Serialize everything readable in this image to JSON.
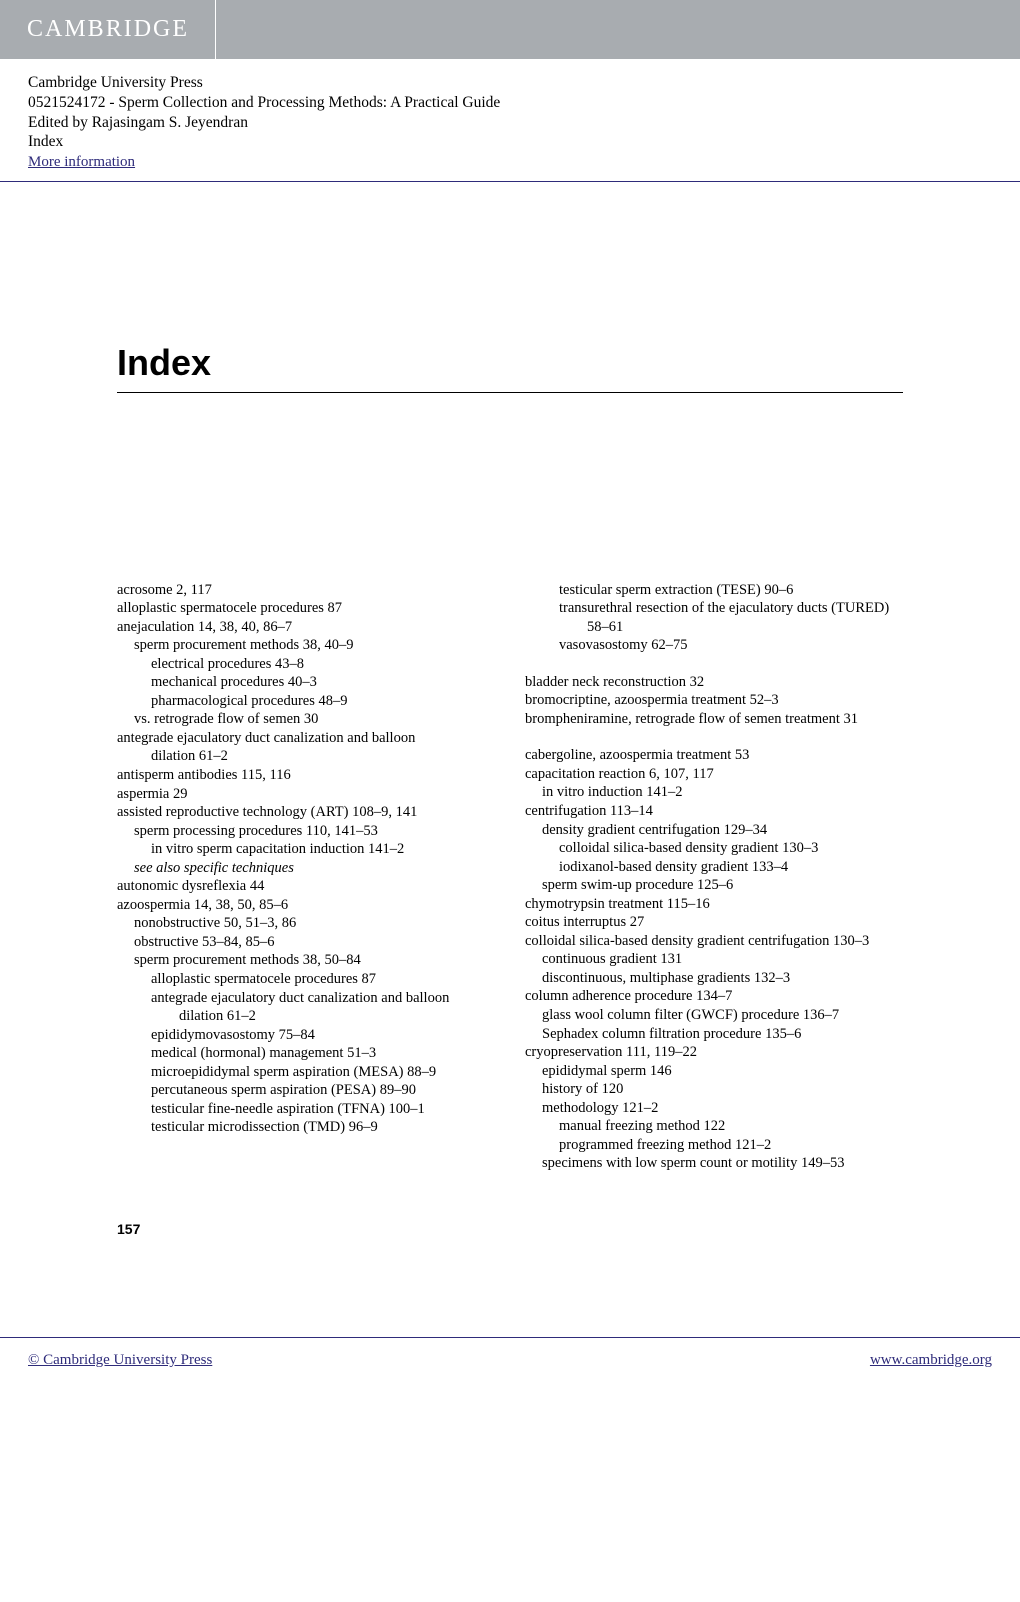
{
  "header": {
    "logo_text": "CAMBRIDGE"
  },
  "meta": {
    "publisher": "Cambridge University Press",
    "isbn_title": "0521524172 - Sperm Collection and Processing Methods: A Practical Guide",
    "editor": "Edited by Rajasingam S. Jeyendran",
    "section": "Index",
    "more_info": "More information"
  },
  "page_title": "Index",
  "page_number": "157",
  "footer": {
    "left": "© Cambridge University Press",
    "right": "www.cambridge.org"
  },
  "colors": {
    "header_bg": "#a8acb0",
    "link": "#2e2b7a",
    "text": "#000000",
    "bg": "#ffffff"
  },
  "left_column": [
    {
      "level": 0,
      "text": "acrosome 2, 117"
    },
    {
      "level": 0,
      "text": "alloplastic spermatocele procedures 87"
    },
    {
      "level": 0,
      "text": "anejaculation 14, 38, 40, 86–7"
    },
    {
      "level": 1,
      "text": "sperm procurement methods 38, 40–9"
    },
    {
      "level": 2,
      "text": "electrical procedures 43–8"
    },
    {
      "level": 2,
      "text": "mechanical procedures 40–3"
    },
    {
      "level": 2,
      "text": "pharmacological procedures 48–9"
    },
    {
      "level": 1,
      "text": "vs. retrograde flow of semen 30"
    },
    {
      "level": 0,
      "text": "antegrade ejaculatory duct canalization and balloon"
    },
    {
      "level": 2,
      "text": "dilation 61–2"
    },
    {
      "level": 0,
      "text": "antisperm antibodies 115, 116"
    },
    {
      "level": 0,
      "text": "aspermia 29"
    },
    {
      "level": 0,
      "text": "assisted reproductive technology (ART) 108–9, 141"
    },
    {
      "level": 1,
      "text": "sperm processing procedures 110, 141–53"
    },
    {
      "level": 2,
      "text": "in vitro sperm capacitation induction 141–2"
    },
    {
      "level": 1,
      "text": "see also specific techniques",
      "italic": true
    },
    {
      "level": 0,
      "text": "autonomic dysreflexia 44"
    },
    {
      "level": 0,
      "text": "azoospermia 14, 38, 50, 85–6"
    },
    {
      "level": 1,
      "text": "nonobstructive 50, 51–3, 86"
    },
    {
      "level": 1,
      "text": "obstructive 53–84, 85–6"
    },
    {
      "level": 1,
      "text": "sperm procurement methods 38, 50–84"
    },
    {
      "level": 2,
      "text": "alloplastic spermatocele procedures 87"
    },
    {
      "level": 2,
      "text": "antegrade ejaculatory duct canalization and balloon dilation 61–2"
    },
    {
      "level": 2,
      "text": "epididymovasostomy 75–84"
    },
    {
      "level": 2,
      "text": "medical (hormonal) management 51–3"
    },
    {
      "level": 2,
      "text": "microepididymal sperm aspiration (MESA) 88–9"
    },
    {
      "level": 2,
      "text": "percutaneous sperm aspiration (PESA) 89–90"
    },
    {
      "level": 2,
      "text": "testicular fine-needle aspiration (TFNA) 100–1"
    },
    {
      "level": 2,
      "text": "testicular microdissection (TMD) 96–9"
    }
  ],
  "right_column": [
    {
      "level": 2,
      "text": "testicular sperm extraction (TESE) 90–6"
    },
    {
      "level": 2,
      "text": "transurethral resection of the ejaculatory ducts (TURED) 58–61"
    },
    {
      "level": 2,
      "text": "vasovasostomy 62–75"
    },
    {
      "level": 0,
      "text": " ",
      "spacer": true
    },
    {
      "level": 0,
      "text": "bladder neck reconstruction 32"
    },
    {
      "level": 0,
      "text": "bromocriptine, azoospermia treatment 52–3"
    },
    {
      "level": 0,
      "text": "brompheniramine, retrograde flow of semen treatment 31"
    },
    {
      "level": 0,
      "text": " ",
      "spacer": true
    },
    {
      "level": 0,
      "text": "cabergoline, azoospermia treatment 53"
    },
    {
      "level": 0,
      "text": "capacitation reaction 6, 107, 117"
    },
    {
      "level": 1,
      "text": "in vitro induction 141–2"
    },
    {
      "level": 0,
      "text": "centrifugation 113–14"
    },
    {
      "level": 1,
      "text": "density gradient centrifugation 129–34"
    },
    {
      "level": 2,
      "text": "colloidal silica-based density gradient 130–3"
    },
    {
      "level": 2,
      "text": "iodixanol-based density gradient 133–4"
    },
    {
      "level": 1,
      "text": "sperm swim-up procedure 125–6"
    },
    {
      "level": 0,
      "text": "chymotrypsin treatment 115–16"
    },
    {
      "level": 0,
      "text": "coitus interruptus 27"
    },
    {
      "level": 0,
      "text": "colloidal silica-based density gradient centrifugation 130–3"
    },
    {
      "level": 1,
      "text": "continuous gradient 131"
    },
    {
      "level": 1,
      "text": "discontinuous, multiphase gradients 132–3"
    },
    {
      "level": 0,
      "text": "column adherence procedure 134–7"
    },
    {
      "level": 1,
      "text": "glass wool column filter (GWCF) procedure 136–7"
    },
    {
      "level": 1,
      "text": "Sephadex column filtration procedure 135–6"
    },
    {
      "level": 0,
      "text": "cryopreservation 111, 119–22"
    },
    {
      "level": 1,
      "text": "epididymal sperm 146"
    },
    {
      "level": 1,
      "text": "history of 120"
    },
    {
      "level": 1,
      "text": "methodology 121–2"
    },
    {
      "level": 2,
      "text": "manual freezing method 122"
    },
    {
      "level": 2,
      "text": "programmed freezing method 121–2"
    },
    {
      "level": 1,
      "text": "specimens with low sperm count or motility 149–53"
    }
  ]
}
